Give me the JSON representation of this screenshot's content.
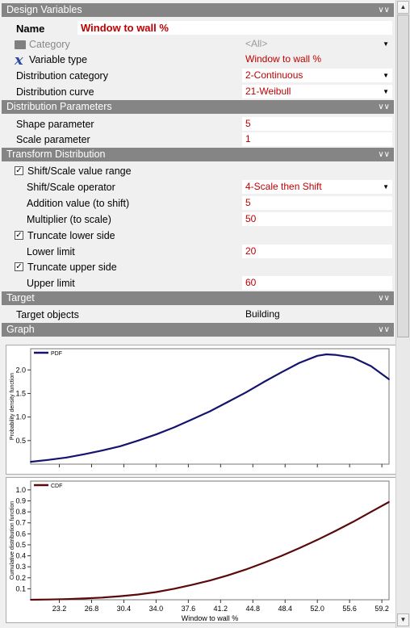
{
  "sections": {
    "design_variables": "Design Variables",
    "distribution_parameters": "Distribution Parameters",
    "transform_distribution": "Transform Distribution",
    "target": "Target",
    "graph": "Graph"
  },
  "design": {
    "name_label": "Name",
    "name_value": "Window to wall %",
    "category_label": "Category",
    "category_value": "<All>",
    "variable_type_label": "Variable type",
    "variable_type_value": "Window to wall %",
    "distribution_category_label": "Distribution category",
    "distribution_category_value": "2-Continuous",
    "distribution_curve_label": "Distribution curve",
    "distribution_curve_value": "21-Weibull"
  },
  "parameters": {
    "shape_label": "Shape parameter",
    "shape_value": "5",
    "scale_label": "Scale parameter",
    "scale_value": "1"
  },
  "transform": {
    "shift_scale_label": "Shift/Scale value range",
    "shift_scale_checked": true,
    "operator_label": "Shift/Scale operator",
    "operator_value": "4-Scale then Shift",
    "addition_label": "Addition value (to shift)",
    "addition_value": "5",
    "multiplier_label": "Multiplier (to scale)",
    "multiplier_value": "50",
    "truncate_lower_label": "Truncate lower side",
    "truncate_lower_checked": true,
    "lower_limit_label": "Lower limit",
    "lower_limit_value": "20",
    "truncate_upper_label": "Truncate upper side",
    "truncate_upper_checked": true,
    "upper_limit_label": "Upper limit",
    "upper_limit_value": "60"
  },
  "target": {
    "objects_label": "Target objects",
    "objects_value": "Building"
  },
  "icons": {
    "category": "folder-icon",
    "variable_type": "x-variable-icon",
    "collapse": "double-chevron-icon",
    "dropdown": "dropdown-arrow-icon"
  },
  "colors": {
    "section_bg": "#858585",
    "value_text": "#c00000",
    "pdf_line": "#14146e",
    "cdf_line": "#5a0a0a"
  },
  "chart_data": [
    {
      "type": "line",
      "title": "",
      "xlabel": "",
      "ylabel": "Probability density function",
      "ylim": [
        0,
        2.45
      ],
      "yticks": [
        0.5,
        1.0,
        1.5,
        2.0
      ],
      "series": [
        {
          "name": "PDF",
          "x": [
            20,
            22,
            24,
            26,
            28,
            30,
            32,
            34,
            36,
            38,
            40,
            42,
            44,
            46,
            48,
            50,
            52,
            53,
            54,
            56,
            58,
            60
          ],
          "values": [
            0.05,
            0.09,
            0.14,
            0.21,
            0.29,
            0.38,
            0.5,
            0.63,
            0.78,
            0.95,
            1.12,
            1.32,
            1.52,
            1.74,
            1.95,
            2.15,
            2.3,
            2.33,
            2.32,
            2.26,
            2.08,
            1.8
          ]
        }
      ]
    },
    {
      "type": "line",
      "title": "",
      "xlabel": "Window to wall %",
      "ylabel": "Cumulative distribution function",
      "ylim": [
        0,
        1.08
      ],
      "yticks": [
        0.1,
        0.2,
        0.3,
        0.4,
        0.5,
        0.6,
        0.7,
        0.8,
        0.9,
        1.0
      ],
      "xticks": [
        "23.2",
        "26.8",
        "30.4",
        "34.0",
        "37.6",
        "41.2",
        "44.8",
        "48.4",
        "52.0",
        "55.6",
        "59.2"
      ],
      "xlim": [
        20,
        60
      ],
      "series": [
        {
          "name": "CDF",
          "x": [
            20,
            22,
            24,
            26,
            28,
            30,
            32,
            34,
            36,
            38,
            40,
            42,
            44,
            46,
            48,
            50,
            52,
            54,
            56,
            58,
            60
          ],
          "values": [
            0.0,
            0.002,
            0.006,
            0.012,
            0.02,
            0.032,
            0.048,
            0.07,
            0.1,
            0.135,
            0.175,
            0.222,
            0.275,
            0.335,
            0.4,
            0.47,
            0.545,
            0.625,
            0.71,
            0.8,
            0.89
          ]
        }
      ]
    }
  ]
}
